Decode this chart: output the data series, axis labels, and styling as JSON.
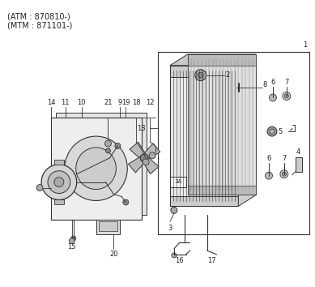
{
  "bg_color": "#ffffff",
  "line_color": "#333333",
  "text_color": "#222222",
  "fig_width": 3.89,
  "fig_height": 3.54,
  "dpi": 100,
  "title1": "(ATM : 870810-)",
  "title2": "(MTM : 871101-)"
}
